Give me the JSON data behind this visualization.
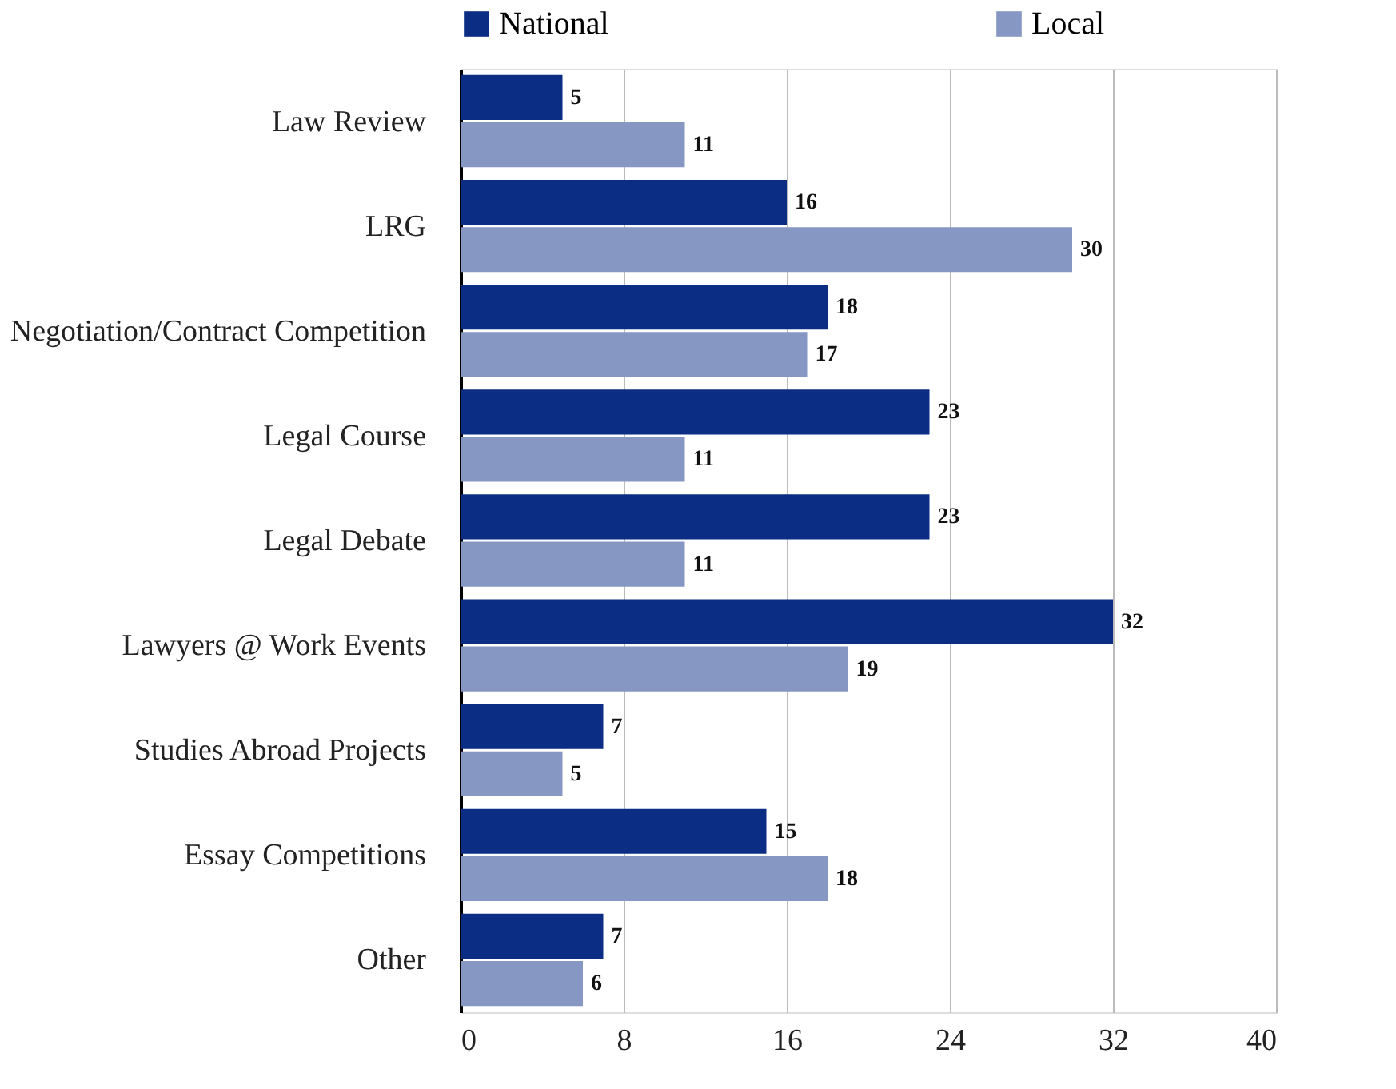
{
  "chart_data": {
    "type": "bar",
    "orientation": "horizontal",
    "categories": [
      "Law Review",
      "LRG",
      "Negotiation/Contract Competition",
      "Legal Course",
      "Legal Debate",
      "Lawyers @ Work Events",
      "Studies Abroad Projects",
      "Essay Competitions",
      "Other"
    ],
    "series": [
      {
        "name": "National",
        "color": "#0b2d83",
        "values": [
          5,
          16,
          18,
          23,
          23,
          32,
          7,
          15,
          7
        ]
      },
      {
        "name": "Local",
        "color": "#8797c4",
        "values": [
          11,
          30,
          17,
          11,
          11,
          19,
          5,
          18,
          6
        ]
      }
    ],
    "xlim": [
      0,
      40
    ],
    "xticks": [
      0,
      8,
      16,
      24,
      32,
      40
    ],
    "grid": "x",
    "legend": "top",
    "data_labels": true
  }
}
